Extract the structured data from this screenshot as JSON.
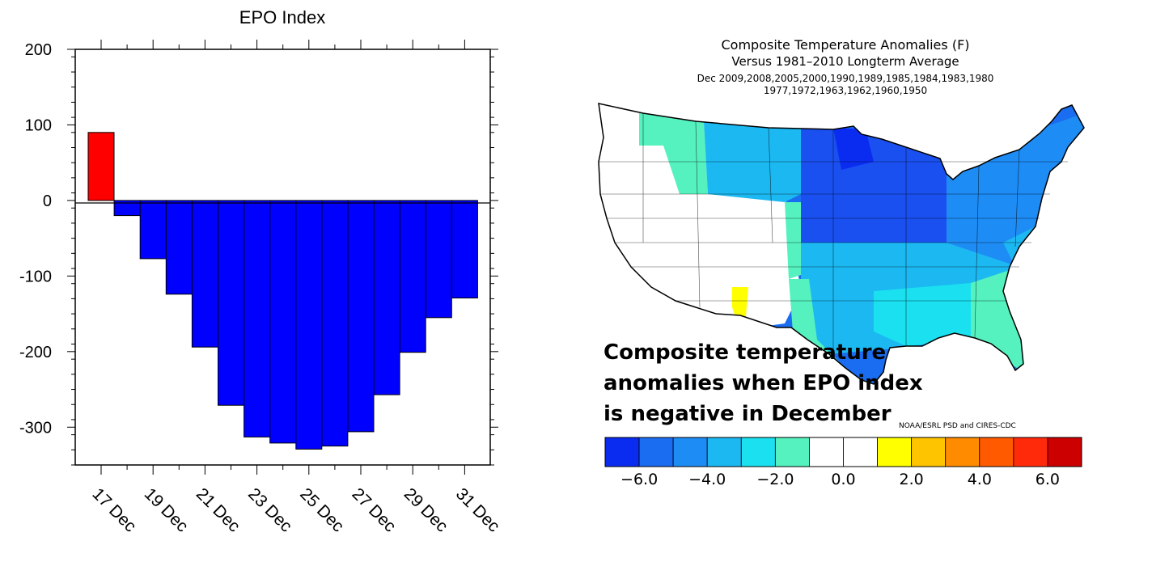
{
  "chart_data": [
    {
      "type": "bar",
      "title": "EPO Index",
      "xlabel": "",
      "ylabel": "",
      "ylim": [
        -350,
        200
      ],
      "ytick_labels": [
        "200",
        "100",
        "0",
        "-100",
        "-200",
        "-300"
      ],
      "yticks": [
        200,
        100,
        0,
        -100,
        -200,
        -300
      ],
      "categories": [
        "17 Dec",
        "18 Dec",
        "19 Dec",
        "20 Dec",
        "21 Dec",
        "22 Dec",
        "23 Dec",
        "24 Dec",
        "25 Dec",
        "26 Dec",
        "27 Dec",
        "28 Dec",
        "29 Dec",
        "30 Dec",
        "31 Dec"
      ],
      "xtick_labels": [
        "17 Dec",
        "19 Dec",
        "21 Dec",
        "23 Dec",
        "25 Dec",
        "27 Dec",
        "29 Dec",
        "31 Dec"
      ],
      "values": [
        90,
        -20,
        -77,
        -124,
        -194,
        -271,
        -313,
        -321,
        -329,
        -325,
        -306,
        -257,
        -201,
        -155,
        -129
      ],
      "colors": {
        "positive": "#ff0000",
        "negative": "#0000ff"
      },
      "grid": false
    },
    {
      "type": "heatmap",
      "title": "Composite Temperature Anomalies (F)",
      "subtitle": "Versus 1981–2010 Longterm Average",
      "subtitle_line2": "Dec   2009,2008,2005,2000,1990,1989,1985,1984,1983,1980",
      "subtitle_line3": "1977,1972,1963,1962,1960,1950",
      "colorbar": {
        "colors": [
          "#0a2cf0",
          "#1a6cf0",
          "#1e8cf5",
          "#1cb8f2",
          "#1ae0f0",
          "#55f2bf",
          "#ffffff",
          "#ffffff",
          "#ffff00",
          "#ffc400",
          "#ff8c00",
          "#ff5a00",
          "#ff2a0a",
          "#cc0000"
        ],
        "tick_labels": [
          "−6.0",
          "−4.0",
          "−2.0",
          "0.0",
          "2.0",
          "4.0",
          "6.0"
        ]
      },
      "credit": "NOAA/ESRL PSD and CIRES-CDC"
    }
  ],
  "annotation": {
    "lines": [
      "Composite temperature",
      "anomalies when EPO index",
      "is negative in December"
    ]
  }
}
